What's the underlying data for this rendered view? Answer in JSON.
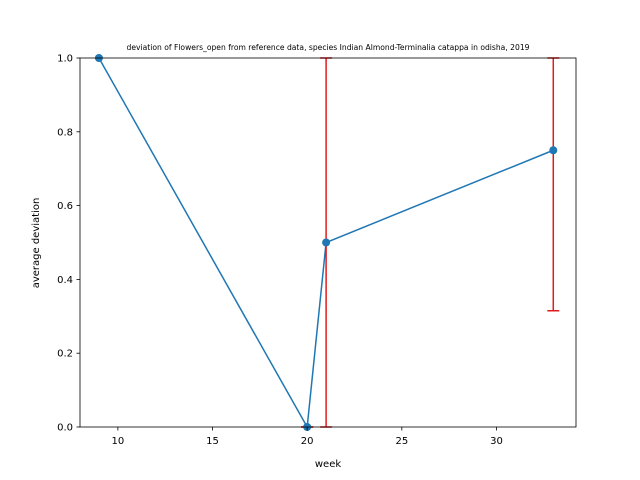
{
  "chart_data": {
    "type": "line",
    "title": "deviation of Flowers_open from reference data, species Indian Almond-Terminalia catappa in odisha, 2019",
    "xlabel": "week",
    "ylabel": "average deviation",
    "xlim": [
      8,
      34.2
    ],
    "ylim": [
      0,
      1.0
    ],
    "xticks": [
      10,
      15,
      20,
      25,
      30
    ],
    "xtick_labels": [
      "10",
      "15",
      "20",
      "25",
      "30"
    ],
    "yticks": [
      0.0,
      0.2,
      0.4,
      0.6,
      0.8,
      1.0
    ],
    "ytick_labels": [
      "0.0",
      "0.2",
      "0.4",
      "0.6",
      "0.8",
      "1.0"
    ],
    "grid": false,
    "series": [
      {
        "x": [
          9,
          20,
          21,
          33
        ],
        "y": [
          1.0,
          0.0,
          0.5,
          0.75
        ],
        "color": "#1f77b4",
        "marker": "circle"
      }
    ],
    "error_bars": {
      "color": "#e31a1c",
      "items": [
        {
          "x": 20,
          "low": 0.0,
          "high": 0.0
        },
        {
          "x": 21,
          "low": 0.0,
          "high": 1.0
        },
        {
          "x": 33,
          "low": 0.315,
          "high": 1.0
        }
      ]
    }
  }
}
